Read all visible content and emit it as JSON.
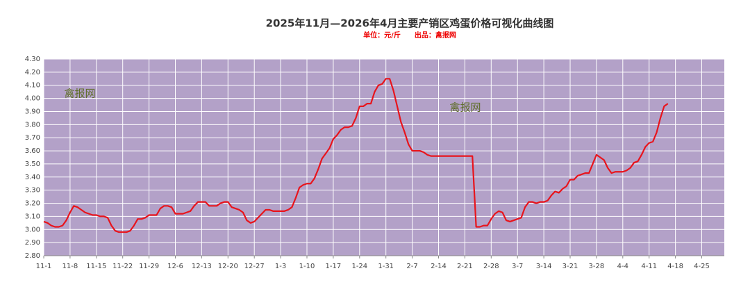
{
  "chart_data": {
    "type": "line",
    "title": "2025年11月—2026年4月主要产销区鸡蛋价格可视化曲线图",
    "subtitle": "单位：元/斤　　出品：禽报网",
    "annotations": [
      "禽报网",
      "禽报网"
    ],
    "categories": [
      "11-1",
      null,
      null,
      null,
      null,
      null,
      null,
      "11-8",
      null,
      null,
      null,
      null,
      null,
      null,
      "11-15",
      null,
      null,
      null,
      null,
      null,
      null,
      "11-22",
      null,
      null,
      null,
      null,
      null,
      null,
      "11-29",
      null,
      null,
      null,
      null,
      null,
      null,
      "12-6",
      null,
      null,
      null,
      null,
      null,
      null,
      "12-13",
      null,
      null,
      null,
      null,
      null,
      null,
      "12-20",
      null,
      null,
      null,
      null,
      null,
      null,
      "12-27",
      null,
      null,
      null,
      null,
      null,
      null,
      "1-3",
      null,
      null,
      null,
      null,
      null,
      null,
      "1-10",
      null,
      null,
      null,
      null,
      null,
      null,
      "1-17",
      null,
      null,
      null,
      null,
      null,
      null,
      "1-24",
      null,
      null,
      null,
      null,
      null,
      null,
      "1-31",
      null,
      null,
      null,
      null,
      null,
      null,
      "2-7",
      null,
      null,
      null,
      null,
      null,
      null,
      "2-14",
      null,
      null,
      null,
      null,
      null,
      null,
      "2-21",
      null,
      null,
      null,
      null,
      null,
      null,
      "2-28",
      null,
      null,
      null,
      null,
      null,
      null,
      "3-7",
      null,
      null,
      null,
      null,
      null,
      null,
      "3-14",
      null,
      null,
      null,
      null,
      null,
      null,
      "3-21",
      null,
      null,
      null,
      null,
      null,
      null,
      "3-28",
      null,
      null,
      null,
      null,
      null,
      null,
      "4-4",
      null,
      null,
      null,
      null,
      null,
      null,
      "4-11",
      null,
      null,
      null,
      null,
      null,
      null,
      "4-18",
      null,
      null,
      null,
      null,
      null,
      null,
      "4-25",
      null,
      null,
      null,
      null,
      null,
      null
    ],
    "series": [
      {
        "color": "#e8141c",
        "values": [
          3.06,
          3.05,
          3.03,
          3.02,
          3.02,
          3.03,
          3.07,
          3.13,
          3.18,
          3.17,
          3.15,
          3.13,
          3.12,
          3.11,
          3.11,
          3.1,
          3.1,
          3.09,
          3.03,
          2.99,
          2.98,
          2.98,
          2.98,
          2.99,
          3.03,
          3.08,
          3.08,
          3.09,
          3.11,
          3.11,
          3.11,
          3.16,
          3.18,
          3.18,
          3.17,
          3.12,
          3.12,
          3.12,
          3.13,
          3.14,
          3.18,
          3.21,
          3.21,
          3.21,
          3.18,
          3.18,
          3.18,
          3.2,
          3.21,
          3.21,
          3.17,
          3.16,
          3.15,
          3.13,
          3.07,
          3.05,
          3.06,
          3.09,
          3.12,
          3.15,
          3.15,
          3.14,
          3.14,
          3.14,
          3.14,
          3.15,
          3.17,
          3.24,
          3.32,
          3.34,
          3.35,
          3.35,
          3.39,
          3.46,
          3.54,
          3.58,
          3.62,
          3.69,
          3.72,
          3.76,
          3.78,
          3.78,
          3.79,
          3.85,
          3.94,
          3.94,
          3.96,
          3.96,
          4.05,
          4.1,
          4.11,
          4.15,
          4.15,
          4.06,
          3.94,
          3.82,
          3.74,
          3.65,
          3.6,
          3.6,
          3.6,
          3.59,
          3.57,
          3.56,
          3.56,
          3.56,
          3.56,
          3.56,
          3.56,
          3.56,
          3.56,
          3.56,
          3.56,
          3.56,
          3.56,
          3.02,
          3.02,
          3.03,
          3.03,
          3.08,
          3.12,
          3.14,
          3.13,
          3.07,
          3.06,
          3.07,
          3.08,
          3.09,
          3.17,
          3.21,
          3.21,
          3.2,
          3.21,
          3.21,
          3.22,
          3.26,
          3.29,
          3.28,
          3.31,
          3.33,
          3.38,
          3.38,
          3.41,
          3.42,
          3.43,
          3.43,
          3.5,
          3.57,
          3.55,
          3.53,
          3.47,
          3.43,
          3.44,
          3.44,
          3.44,
          3.45,
          3.47,
          3.51,
          3.52,
          3.57,
          3.63,
          3.66,
          3.67,
          3.74,
          3.85,
          3.94,
          3.96,
          null,
          null,
          null,
          null,
          null,
          null,
          null,
          null,
          null,
          null,
          null,
          null,
          null,
          null,
          null
        ]
      }
    ],
    "ylim": [
      2.8,
      4.3
    ],
    "yticks": [
      {
        "value": 2.8,
        "label": "2.80"
      },
      {
        "value": 2.9,
        "label": "2.90"
      },
      {
        "value": 3.0,
        "label": "3.00"
      },
      {
        "value": 3.1,
        "label": "3.10"
      },
      {
        "value": 3.2,
        "label": "3.20"
      },
      {
        "value": 3.3,
        "label": "3.30"
      },
      {
        "value": 3.4,
        "label": "3.40"
      },
      {
        "value": 3.5,
        "label": "3.50"
      },
      {
        "value": 3.6,
        "label": "3.60"
      },
      {
        "value": 3.7,
        "label": "3.70"
      },
      {
        "value": 3.8,
        "label": "3.80"
      },
      {
        "value": 3.9,
        "label": "3.90"
      },
      {
        "value": 4.0,
        "label": "4.00"
      },
      {
        "value": 4.1,
        "label": "4.10"
      },
      {
        "value": 4.2,
        "label": "4.20"
      },
      {
        "value": 4.3,
        "label": "4.30"
      }
    ],
    "grid": true,
    "plot_color": "#b3a1c8"
  }
}
